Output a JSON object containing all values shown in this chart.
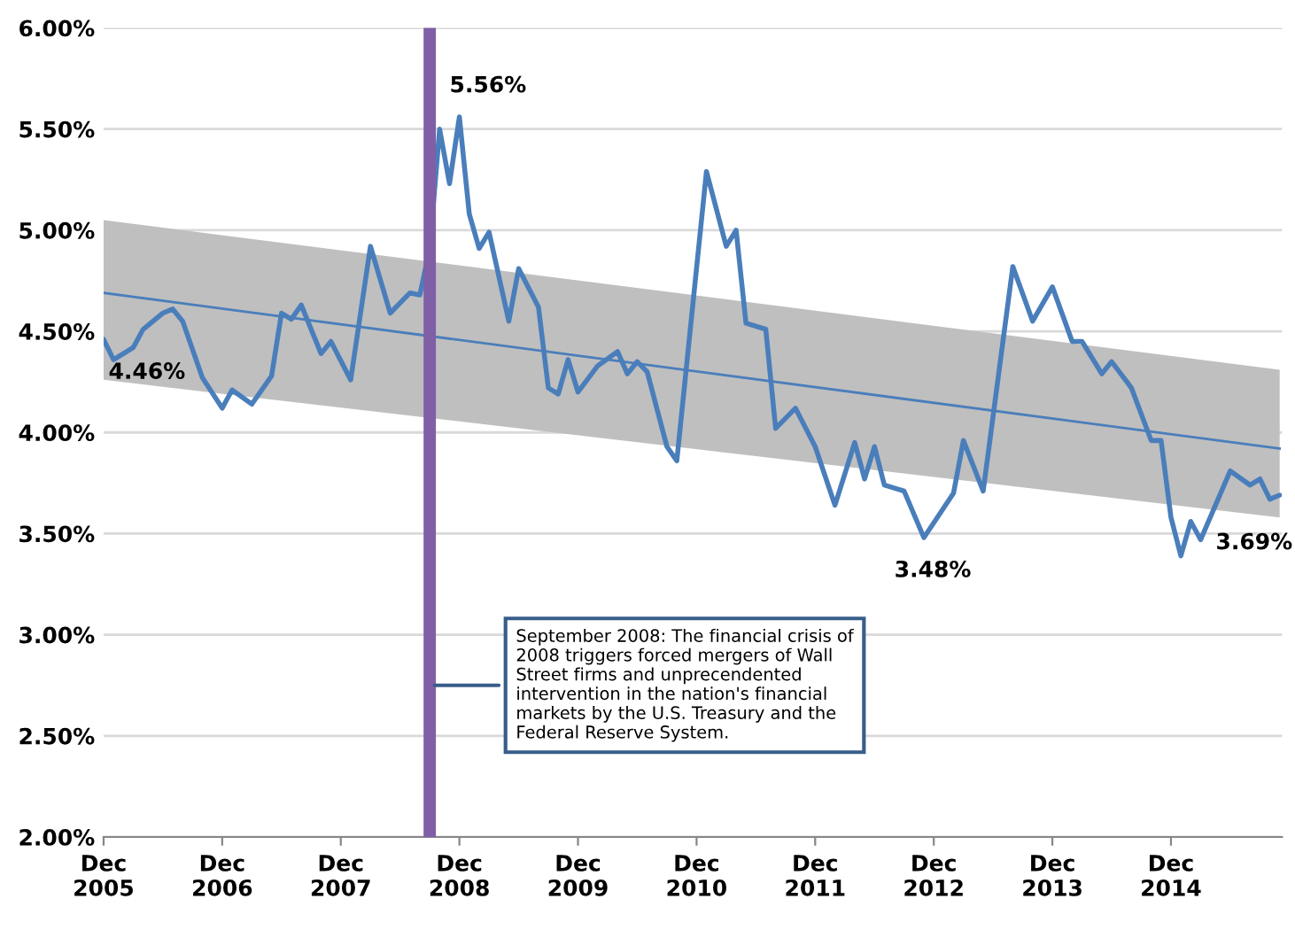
{
  "chart_data": {
    "type": "line",
    "series": [
      {
        "color": "#4a7ebb",
        "x": [
          "2005-12",
          "2015-11"
        ],
        "values": [
          4.69,
          3.92
        ],
        "lower": [
          4.26,
          3.58
        ],
        "upper": [
          5.05,
          4.31
        ]
      },
      {
        "color": "#4a7ebb",
        "x": [
          "2005-12",
          "2006-01",
          "2006-03",
          "2006-04",
          "2006-06",
          "2006-07",
          "2006-08",
          "2006-10",
          "2006-12",
          "2007-01",
          "2007-03",
          "2007-05",
          "2007-06",
          "2007-07",
          "2007-08",
          "2007-10",
          "2007-11",
          "2008-01",
          "2008-03",
          "2008-05",
          "2008-07",
          "2008-08",
          "2008-09",
          "2008-10",
          "2008-11",
          "2008-12",
          "2009-01",
          "2009-02",
          "2009-03",
          "2009-05",
          "2009-06",
          "2009-08",
          "2009-09",
          "2009-10",
          "2009-11",
          "2009-12",
          "2010-02",
          "2010-04",
          "2010-05",
          "2010-06",
          "2010-07",
          "2010-09",
          "2010-10",
          "2011-01",
          "2011-03",
          "2011-04",
          "2011-05",
          "2011-07",
          "2011-08",
          "2011-10",
          "2011-12",
          "2012-02",
          "2012-04",
          "2012-05",
          "2012-06",
          "2012-07",
          "2012-09",
          "2012-11",
          "2013-02",
          "2013-03",
          "2013-05",
          "2013-07",
          "2013-08",
          "2013-10",
          "2013-12",
          "2014-02",
          "2014-03",
          "2014-05",
          "2014-06",
          "2014-08",
          "2014-10",
          "2014-11",
          "2014-12",
          "2015-01",
          "2015-02",
          "2015-03",
          "2015-06",
          "2015-08",
          "2015-09",
          "2015-10",
          "2015-11"
        ],
        "values": [
          4.46,
          4.36,
          4.42,
          4.51,
          4.59,
          4.61,
          4.55,
          4.27,
          4.12,
          4.21,
          4.14,
          4.28,
          4.59,
          4.56,
          4.63,
          4.39,
          4.45,
          4.26,
          4.92,
          4.59,
          4.69,
          4.68,
          4.91,
          5.5,
          5.23,
          5.56,
          5.08,
          4.91,
          4.99,
          4.55,
          4.81,
          4.62,
          4.22,
          4.19,
          4.36,
          4.2,
          4.33,
          4.4,
          4.29,
          4.35,
          4.3,
          3.93,
          3.86,
          5.29,
          4.92,
          5.0,
          4.54,
          4.51,
          4.02,
          4.12,
          3.93,
          3.64,
          3.95,
          3.77,
          3.93,
          3.74,
          3.71,
          3.48,
          3.7,
          3.96,
          3.71,
          4.45,
          4.82,
          4.55,
          4.72,
          4.45,
          4.45,
          4.29,
          4.35,
          4.22,
          3.96,
          3.96,
          3.58,
          3.39,
          3.56,
          3.47,
          3.81,
          3.74,
          3.77,
          3.67,
          3.69
        ]
      }
    ],
    "xlim": [
      "2005-12",
      "2015-11"
    ],
    "xticks": [
      {
        "value": "2005-12",
        "label": "Dec\n2005"
      },
      {
        "value": "2006-12",
        "label": "Dec\n2006"
      },
      {
        "value": "2007-12",
        "label": "Dec\n2007"
      },
      {
        "value": "2008-12",
        "label": "Dec\n2008"
      },
      {
        "value": "2009-12",
        "label": "Dec\n2009"
      },
      {
        "value": "2010-12",
        "label": "Dec\n2010"
      },
      {
        "value": "2011-12",
        "label": "Dec\n2011"
      },
      {
        "value": "2012-12",
        "label": "Dec\n2012"
      },
      {
        "value": "2013-12",
        "label": "Dec\n2013"
      },
      {
        "value": "2014-12",
        "label": "Dec\n2014"
      }
    ],
    "ylim": [
      2,
      6
    ],
    "yticks": [
      {
        "value": 2,
        "label": "2.00%"
      },
      {
        "value": 2.5,
        "label": "2.50%"
      },
      {
        "value": 3,
        "label": "3.00%"
      },
      {
        "value": 3.5,
        "label": "3.50%"
      },
      {
        "value": 4,
        "label": "4.00%"
      },
      {
        "value": 4.5,
        "label": "4.50%"
      },
      {
        "value": 5,
        "label": "5.00%"
      },
      {
        "value": 5.5,
        "label": "5.50%"
      },
      {
        "value": 6,
        "label": "6.00%"
      }
    ],
    "grid": "y",
    "ref_lines": [
      {
        "axis": "x",
        "value": "2008-09",
        "color": "#7f5fa6"
      }
    ],
    "annotations": [
      {
        "text": "4.46%",
        "x": "2005-12",
        "y": 4.46
      },
      {
        "text": "5.56%",
        "x": "2008-12",
        "y": 5.56
      },
      {
        "text": "3.48%",
        "x": "2012-11",
        "y": 3.48
      },
      {
        "text": "3.69%",
        "x": "2015-11",
        "y": 3.69
      },
      {
        "text": "September 2008: The financial crisis of\n2008 triggers forced mergers of Wall\nStreet firms and unprecendented\nintervention in the nation's financial\nmarkets by the U.S. Treasury and the\nFederal Reserve System.",
        "x": "2008-09",
        "y": 2.75
      }
    ]
  }
}
